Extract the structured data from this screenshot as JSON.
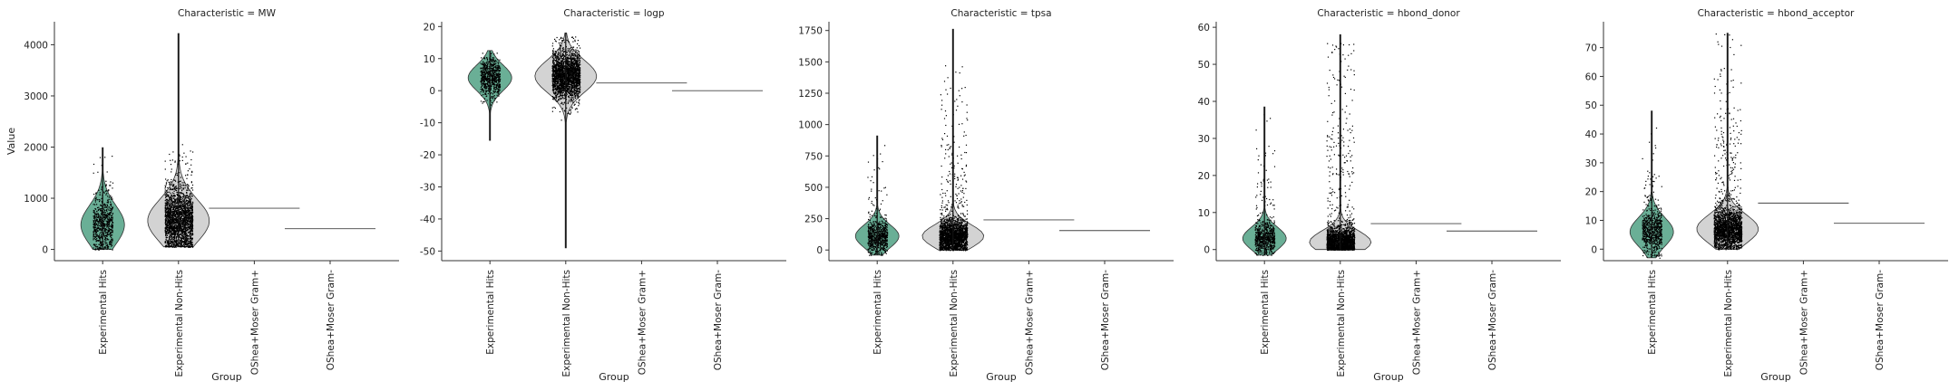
{
  "figure": {
    "ylabel": "Value",
    "xlabel": "Group"
  },
  "colors": {
    "hits": "#6aaf96",
    "nonhits": "#d3d3d3",
    "points": "#000000",
    "axis": "#333333"
  },
  "chart_data": [
    {
      "type": "violin",
      "title": "Characteristic = MW",
      "xlabel": "Group",
      "ylabel": "Value",
      "categories": [
        "Experimental Hits",
        "Experimental Non-Hits",
        "OShea+Moser Gram+",
        "OShea+Moser Gram-"
      ],
      "ylim": [
        -220,
        4450
      ],
      "yticks": [
        0,
        1000,
        2000,
        3000,
        4000
      ],
      "series": [
        {
          "group": "Experimental Hits",
          "min": 0,
          "max": 1990,
          "center": 480,
          "width_value": 380,
          "scatter_max": 1900
        },
        {
          "group": "Experimental Non-Hits",
          "min": 50,
          "max": 4220,
          "center": 560,
          "width_value": 420,
          "scatter_max": 2150
        },
        {
          "group": "OShea+Moser Gram+",
          "value": 805
        },
        {
          "group": "OShea+Moser Gram-",
          "value": 405
        }
      ]
    },
    {
      "type": "violin",
      "title": "Characteristic = logp",
      "xlabel": "Group",
      "ylabel": "",
      "categories": [
        "Experimental Hits",
        "Experimental Non-Hits",
        "OShea+Moser Gram+",
        "OShea+Moser Gram-"
      ],
      "ylim": [
        -53,
        21.5
      ],
      "yticks": [
        -50,
        -40,
        -30,
        -20,
        -10,
        0,
        10,
        20
      ],
      "series": [
        {
          "group": "Experimental Hits",
          "min": -15.5,
          "max": 12.5,
          "center": 4,
          "width_value": 4,
          "scatter_max": 12
        },
        {
          "group": "Experimental Non-Hits",
          "min": -49,
          "max": 18,
          "center": 4.5,
          "width_value": 5,
          "scatter_max": 18
        },
        {
          "group": "OShea+Moser Gram+",
          "value": 2.4
        },
        {
          "group": "OShea+Moser Gram-",
          "value": 0
        }
      ]
    },
    {
      "type": "violin",
      "title": "Characteristic = tpsa",
      "xlabel": "Group",
      "ylabel": "",
      "categories": [
        "Experimental Hits",
        "Experimental Non-Hits",
        "OShea+Moser Gram+",
        "OShea+Moser Gram-"
      ],
      "ylim": [
        -85,
        1820
      ],
      "yticks": [
        0,
        250,
        500,
        750,
        1000,
        1250,
        1500,
        1750
      ],
      "series": [
        {
          "group": "Experimental Hits",
          "min": -40,
          "max": 910,
          "center": 110,
          "width_value": 90,
          "scatter_max": 870
        },
        {
          "group": "Experimental Non-Hits",
          "min": 0,
          "max": 1760,
          "center": 110,
          "width_value": 90,
          "scatter_max": 1480
        },
        {
          "group": "OShea+Moser Gram+",
          "value": 240
        },
        {
          "group": "OShea+Moser Gram-",
          "value": 155
        }
      ]
    },
    {
      "type": "violin",
      "title": "Characteristic = hbond_donor",
      "xlabel": "Group",
      "ylabel": "",
      "categories": [
        "Experimental Hits",
        "Experimental Non-Hits",
        "OShea+Moser Gram+",
        "OShea+Moser Gram-"
      ],
      "ylim": [
        -3,
        61.5
      ],
      "yticks": [
        0,
        10,
        20,
        30,
        40,
        50,
        60
      ],
      "series": [
        {
          "group": "Experimental Hits",
          "min": -1.5,
          "max": 38.5,
          "center": 3,
          "width_value": 3,
          "scatter_max": 37
        },
        {
          "group": "Experimental Non-Hits",
          "min": 0,
          "max": 58,
          "center": 2,
          "width_value": 3,
          "scatter_max": 56
        },
        {
          "group": "OShea+Moser Gram+",
          "value": 7
        },
        {
          "group": "OShea+Moser Gram-",
          "value": 5
        }
      ]
    },
    {
      "type": "violin",
      "title": "Characteristic = hbond_acceptor",
      "xlabel": "Group",
      "ylabel": "",
      "categories": [
        "Experimental Hits",
        "Experimental Non-Hits",
        "OShea+Moser Gram+",
        "OShea+Moser Gram-"
      ],
      "ylim": [
        -4,
        79
      ],
      "yticks": [
        0,
        10,
        20,
        30,
        40,
        50,
        60,
        70
      ],
      "series": [
        {
          "group": "Experimental Hits",
          "min": -3,
          "max": 48,
          "center": 6,
          "width_value": 5,
          "scatter_max": 45
        },
        {
          "group": "Experimental Non-Hits",
          "min": 0,
          "max": 75,
          "center": 7,
          "width_value": 5,
          "scatter_max": 75
        },
        {
          "group": "OShea+Moser Gram+",
          "value": 16
        },
        {
          "group": "OShea+Moser Gram-",
          "value": 9
        }
      ]
    }
  ]
}
